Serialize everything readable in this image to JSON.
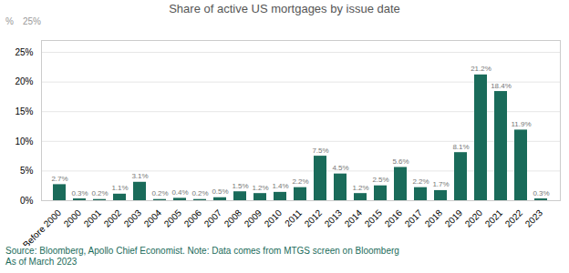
{
  "chart_data": {
    "type": "bar",
    "title": "Share of active US mortgages by issue date",
    "categories": [
      "Before 2000",
      "2000",
      "2001",
      "2002",
      "2003",
      "2004",
      "2005",
      "2006",
      "2007",
      "2008",
      "2009",
      "2010",
      "2011",
      "2012",
      "2013",
      "2014",
      "2015",
      "2016",
      "2017",
      "2018",
      "2019",
      "2020",
      "2021",
      "2022",
      "2023"
    ],
    "values": [
      2.7,
      0.3,
      0.2,
      1.1,
      3.1,
      0.2,
      0.4,
      0.2,
      0.5,
      1.5,
      1.2,
      1.4,
      2.2,
      7.5,
      4.5,
      1.2,
      2.5,
      5.6,
      2.2,
      1.7,
      8.1,
      21.2,
      18.4,
      11.9,
      0.3
    ],
    "value_labels": [
      "2.7%",
      "0.3%",
      "0.2%",
      "1.1%",
      "3.1%",
      "0.2%",
      "0.4%",
      "0.2%",
      "0.5%",
      "1.5%",
      "1.2%",
      "1.4%",
      "2.2%",
      "7.5%",
      "4.5%",
      "1.2%",
      "2.5%",
      "5.6%",
      "2.2%",
      "1.7%",
      "8.1%",
      "21.2%",
      "18.4%",
      "11.9%",
      "0.3%"
    ],
    "color": "#1a6b5a",
    "ylim": [
      0,
      27
    ],
    "yticks": [
      {
        "value": 0,
        "label": "0%"
      },
      {
        "value": 5,
        "label": "5%"
      },
      {
        "value": 10,
        "label": "10%"
      },
      {
        "value": 15,
        "label": "15%"
      },
      {
        "value": 20,
        "label": "20%"
      },
      {
        "value": 25,
        "label": "25%"
      }
    ],
    "grid": true,
    "data_labels": true,
    "annotations": [
      "%",
      "25%"
    ],
    "caption": "Source: Bloomberg, Apollo Chief Economist. Note: Data comes from MTGS screen on Bloomberg\nAs of March 2023"
  }
}
